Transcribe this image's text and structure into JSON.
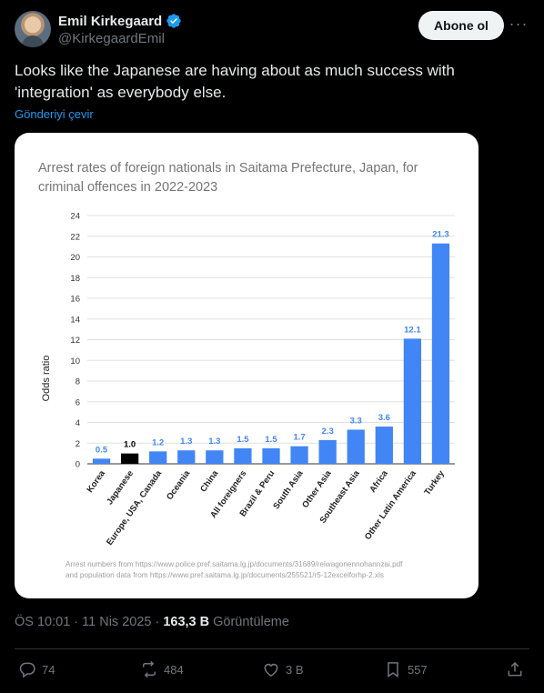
{
  "author": {
    "name": "Emil Kirkegaard",
    "handle": "@KirkegaardEmil",
    "follow_label": "Abone ol"
  },
  "tweet": {
    "text": "Looks like the Japanese are having about as much success with 'integration' as everybody else.",
    "translate_label": "Gönderiyi çevir",
    "time": "ÖS 10:01 · 11 Nis 2025 ·",
    "views_count": "163,3 B",
    "views_label": "Görüntüleme"
  },
  "actions": {
    "replies": "74",
    "reposts": "484",
    "likes": "3 B",
    "bookmarks": "557"
  },
  "colors": {
    "bar": "#4285f4",
    "bar_highlight": "#000000",
    "accent": "#1d9bf0"
  },
  "chart_data": {
    "type": "bar",
    "title_lines": [
      "Arrest rates of foreign nationals in Saitama Prefecture, Japan, for",
      "criminal offences in 2022-2023"
    ],
    "ylabel": "Odds ratio",
    "xlabel": "",
    "ylim": [
      0,
      24
    ],
    "yticks": [
      0,
      2,
      4,
      6,
      8,
      10,
      12,
      14,
      16,
      18,
      20,
      22,
      24
    ],
    "grid": true,
    "categories": [
      "Korea",
      "Japanese",
      "Europe, USA, Canada",
      "Oceania",
      "China",
      "All foreigners",
      "Brazil & Peru",
      "South Asia",
      "Other Asia",
      "Southeast Asia",
      "Africa",
      "Other Latin America",
      "Turkey"
    ],
    "values": [
      0.5,
      1.0,
      1.2,
      1.3,
      1.3,
      1.5,
      1.5,
      1.7,
      2.3,
      3.3,
      3.6,
      12.1,
      21.3
    ],
    "value_labels": [
      "0.5",
      "1.0",
      "1.2",
      "1.3",
      "1.3",
      "1.5",
      "1.5",
      "1.7",
      "2.3",
      "3.3",
      "3.6",
      "12.1",
      "21.3"
    ],
    "highlight_category": "Japanese",
    "source_lines": [
      "Arrest numbers from https://www.police.pref.saitama.lg.jp/documents/31689/reiwagonennohannzai.pdf",
      "and population data from https://www.pref.saitama.lg.jp/documents/255521/r5-12excelforhp-2.xls"
    ]
  }
}
